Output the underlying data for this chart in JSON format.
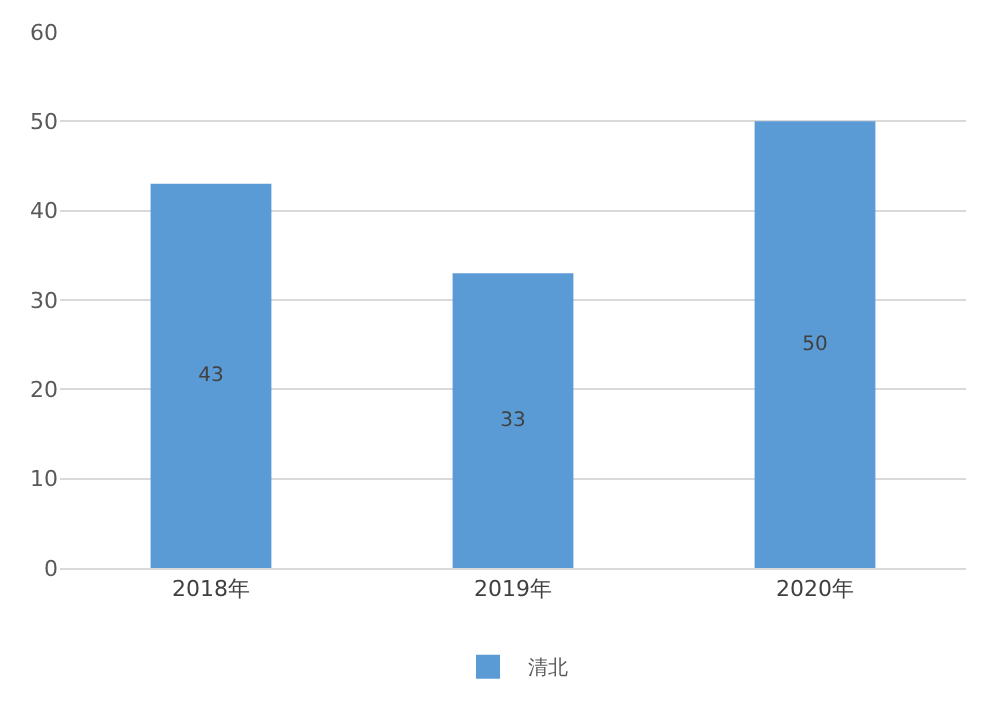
{
  "chart_data": {
    "type": "bar",
    "categories": [
      "2018年",
      "2019年",
      "2020年"
    ],
    "series": [
      {
        "name": "清北",
        "color": "#5b9bd5",
        "values": [
          43,
          33,
          50
        ]
      }
    ],
    "ylim": [
      0,
      60
    ],
    "yticks": [
      0,
      10,
      20,
      30,
      40,
      50,
      60
    ],
    "grid": "y",
    "legend": "bottom",
    "data_labels": true
  }
}
